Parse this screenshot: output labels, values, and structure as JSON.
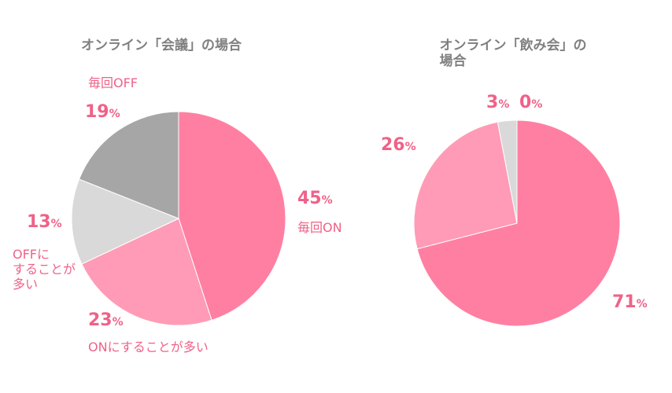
{
  "chart_data": [
    {
      "type": "pie",
      "title": "オンライン「会議」の場合",
      "categories": [
        "毎回ON",
        "ONにすることが多い",
        "OFFに\nすることが\n多い",
        "毎回OFF"
      ],
      "values": [
        45,
        23,
        13,
        19
      ],
      "value_labels": [
        "45%",
        "23%",
        "13%",
        "19%"
      ],
      "colors": [
        "#ff7fa2",
        "#ff9bb6",
        "#d9d9d9",
        "#a6a6a6"
      ]
    },
    {
      "type": "pie",
      "title": "オンライン「飲み会」の場合",
      "values": [
        71,
        26,
        3,
        0
      ],
      "value_labels": [
        "71%",
        "26%",
        "3%",
        "0%"
      ],
      "colors": [
        "#ff7fa2",
        "#ff9bb6",
        "#d9d9d9",
        "#a6a6a6"
      ]
    }
  ]
}
